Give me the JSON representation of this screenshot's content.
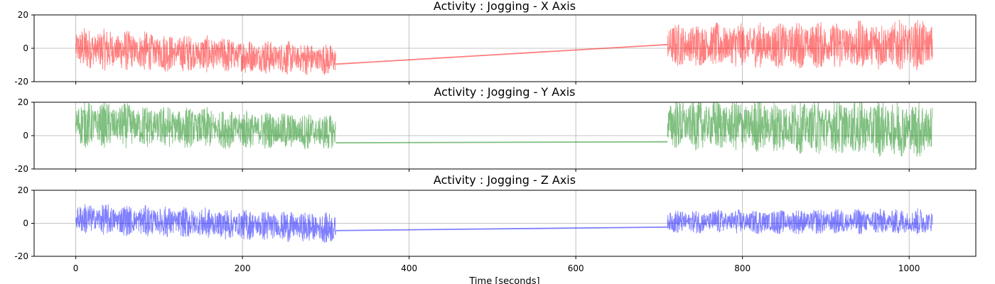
{
  "chart_data": [
    {
      "type": "line",
      "title": "Activity : Jogging - X Axis",
      "xlabel": "",
      "ylabel": "",
      "xlim": [
        -50,
        1080
      ],
      "ylim": [
        -20,
        20
      ],
      "yticks": [
        20,
        0,
        -20
      ],
      "xticks": [
        0,
        200,
        400,
        600,
        800,
        1000
      ],
      "show_xticklabels": false,
      "grid": true,
      "color": "#ff0000",
      "alpha": 0.5,
      "series": [
        {
          "segments": [
            {
              "x_start": 0,
              "x_end": 312,
              "center_start": 0,
              "center_end": -7,
              "amp_start": 11,
              "amp_end": 8
            },
            {
              "x_start": 710,
              "x_end": 1028,
              "center_start": 2,
              "center_end": 2,
              "amp_start": 11,
              "amp_end": 13
            }
          ],
          "bridge": {
            "x": [
              312,
              710
            ],
            "y": [
              -9.5,
              2.2
            ]
          }
        }
      ]
    },
    {
      "type": "line",
      "title": "Activity : Jogging - Y Axis",
      "xlabel": "",
      "ylabel": "",
      "xlim": [
        -50,
        1080
      ],
      "ylim": [
        -20,
        20
      ],
      "yticks": [
        20,
        0,
        -20
      ],
      "xticks": [
        0,
        200,
        400,
        600,
        800,
        1000
      ],
      "show_xticklabels": false,
      "grid": true,
      "color": "#008000",
      "alpha": 0.5,
      "series": [
        {
          "segments": [
            {
              "x_start": 0,
              "x_end": 312,
              "center_start": 7,
              "center_end": 2,
              "amp_start": 12,
              "amp_end": 9
            },
            {
              "x_start": 710,
              "x_end": 1028,
              "center_start": 7,
              "center_end": 4,
              "amp_start": 13,
              "amp_end": 15
            }
          ],
          "bridge": {
            "x": [
              312,
              710
            ],
            "y": [
              -4.3,
              -3.7
            ]
          }
        }
      ]
    },
    {
      "type": "line",
      "title": "Activity : Jogging - Z Axis",
      "xlabel": "Time [seconds]",
      "ylabel": "",
      "xlim": [
        -50,
        1080
      ],
      "ylim": [
        -20,
        20
      ],
      "yticks": [
        20,
        0,
        -20
      ],
      "xticks": [
        0,
        200,
        400,
        600,
        800,
        1000
      ],
      "show_xticklabels": true,
      "grid": true,
      "color": "#0000ff",
      "alpha": 0.5,
      "series": [
        {
          "segments": [
            {
              "x_start": 0,
              "x_end": 312,
              "center_start": 3,
              "center_end": -3,
              "amp_start": 8,
              "amp_end": 8
            },
            {
              "x_start": 710,
              "x_end": 1028,
              "center_start": 1,
              "center_end": 1,
              "amp_start": 6,
              "amp_end": 7
            }
          ],
          "bridge": {
            "x": [
              312,
              710
            ],
            "y": [
              -4.4,
              -2.3
            ]
          }
        }
      ]
    }
  ]
}
